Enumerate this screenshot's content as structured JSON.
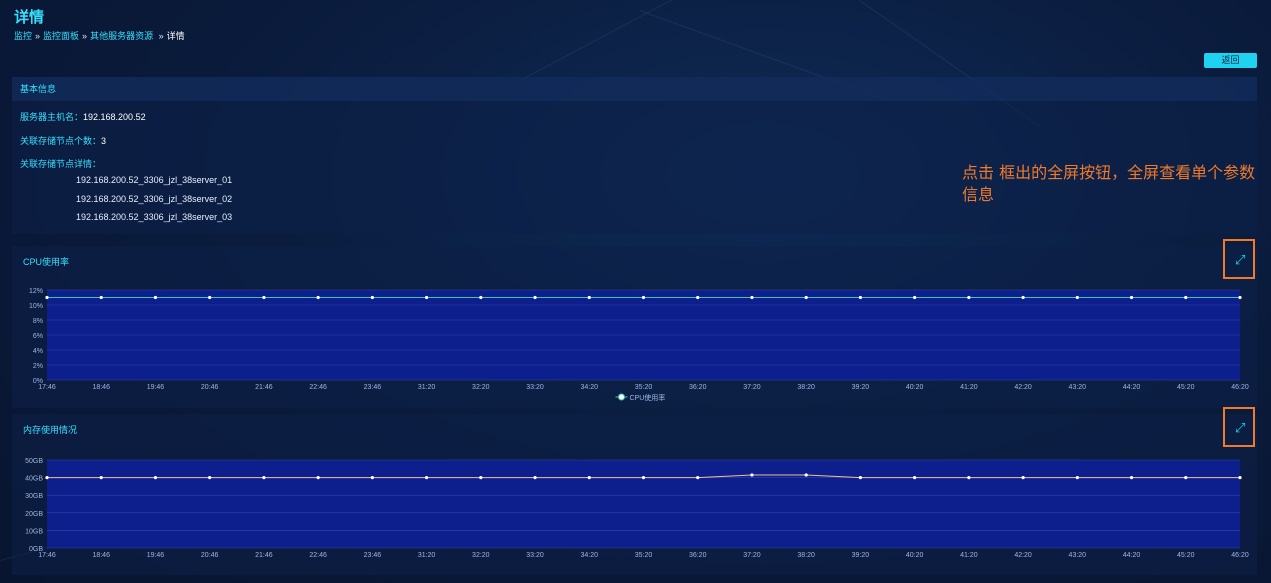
{
  "page": {
    "title": "详情",
    "breadcrumb": [
      "监控",
      "监控面板",
      "其他服务器资源",
      "详情"
    ],
    "back_label": "返回"
  },
  "basic_info": {
    "header": "基本信息",
    "hostname_label": "服务器主机名：",
    "hostname": "192.168.200.52",
    "node_count_label": "关联存储节点个数：",
    "node_count": "3",
    "nodes_label": "关联存储节点详情：",
    "nodes": [
      "192.168.200.52_3306_jzl_38server_01",
      "192.168.200.52_3306_jzl_38server_02",
      "192.168.200.52_3306_jzl_38server_03"
    ]
  },
  "annotation": "点击  框出的全屏按钮，全屏查看单个参数信息",
  "colors": {
    "accent": "#35e0ff",
    "plot_bg": "#0c1f8c",
    "cpu_line": "#3cc9a0",
    "mem_line": "#f0c090",
    "highlight": "#f07a2a"
  },
  "icons": {
    "expand": "expand-icon"
  },
  "chart_data": [
    {
      "type": "line",
      "title": "CPU使用率",
      "categories": [
        "17:46",
        "18:46",
        "19:46",
        "20:46",
        "21:46",
        "22:46",
        "23:46",
        "31:20",
        "32:20",
        "33:20",
        "34:20",
        "35:20",
        "36:20",
        "37:20",
        "38:20",
        "39:20",
        "40:20",
        "41:20",
        "42:20",
        "43:20",
        "44:20",
        "45:20",
        "46:20"
      ],
      "series": [
        {
          "name": "CPU使用率",
          "values": [
            11,
            11,
            11,
            11,
            11,
            11,
            11,
            11,
            11,
            11,
            11,
            11,
            11,
            11,
            11,
            11,
            11,
            11,
            11,
            11,
            11,
            11,
            11
          ]
        }
      ],
      "yticks": [
        "0%",
        "2%",
        "4%",
        "6%",
        "8%",
        "10%",
        "12%"
      ],
      "ylim": [
        0,
        12
      ],
      "grid": true,
      "legend": "bottom-center"
    },
    {
      "type": "line",
      "title": "内存使用情况",
      "categories": [
        "17:46",
        "18:46",
        "19:46",
        "20:46",
        "21:46",
        "22:46",
        "23:46",
        "31:20",
        "32:20",
        "33:20",
        "34:20",
        "35:20",
        "36:20",
        "37:20",
        "38:20",
        "39:20",
        "40:20",
        "41:20",
        "42:20",
        "43:20",
        "44:20",
        "45:20",
        "46:20"
      ],
      "series": [
        {
          "name": "",
          "values": [
            40,
            40,
            40,
            40,
            40,
            40,
            40,
            40,
            40,
            40,
            40,
            40,
            40,
            41.5,
            41.5,
            40,
            40,
            40,
            40,
            40,
            40,
            40,
            40
          ]
        }
      ],
      "yticks": [
        "0GB",
        "10GB",
        "20GB",
        "30GB",
        "40GB",
        "50GB"
      ],
      "ylim": [
        0,
        50
      ],
      "grid": true,
      "legend": "none"
    }
  ]
}
